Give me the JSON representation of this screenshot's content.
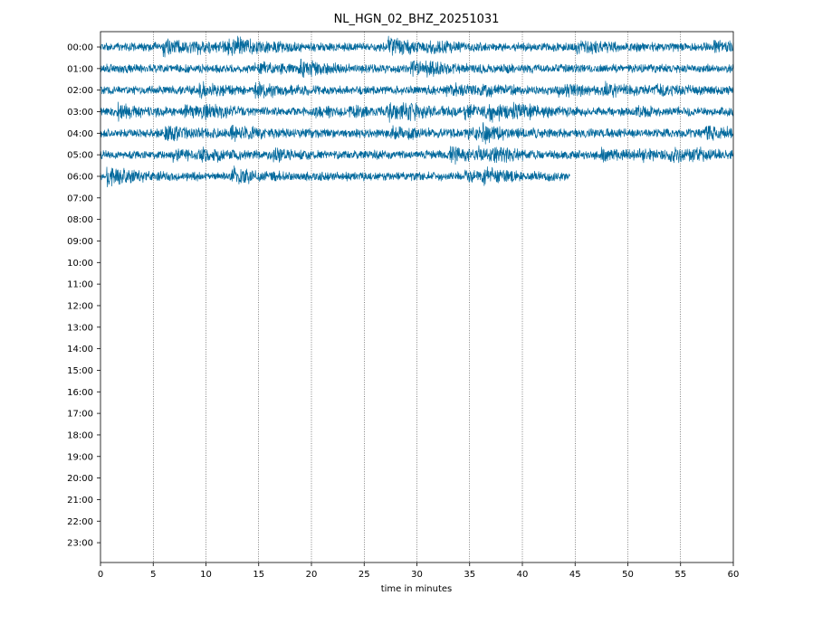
{
  "chart_data": {
    "type": "line",
    "subtype": "seismogram-dayplot",
    "title": "NL_HGN_02_BHZ_20251031",
    "xlabel": "time in minutes",
    "ylabel": "",
    "xlim": [
      0,
      60
    ],
    "xticks": [
      "0",
      "5",
      "10",
      "15",
      "20",
      "25",
      "30",
      "35",
      "40",
      "45",
      "50",
      "55",
      "60"
    ],
    "grid": "vertical dotted lines at each x tick",
    "line_color": "#00689c",
    "rows": [
      {
        "label": "00:00",
        "start_min": 0,
        "end_min": 60
      },
      {
        "label": "01:00",
        "start_min": 0,
        "end_min": 60
      },
      {
        "label": "02:00",
        "start_min": 0,
        "end_min": 60
      },
      {
        "label": "03:00",
        "start_min": 0,
        "end_min": 60
      },
      {
        "label": "04:00",
        "start_min": 0,
        "end_min": 60
      },
      {
        "label": "05:00",
        "start_min": 0,
        "end_min": 60
      },
      {
        "label": "06:00",
        "start_min": 0,
        "end_min": 44.5
      },
      {
        "label": "07:00",
        "start_min": null,
        "end_min": null
      },
      {
        "label": "08:00",
        "start_min": null,
        "end_min": null
      },
      {
        "label": "09:00",
        "start_min": null,
        "end_min": null
      },
      {
        "label": "10:00",
        "start_min": null,
        "end_min": null
      },
      {
        "label": "11:00",
        "start_min": null,
        "end_min": null
      },
      {
        "label": "12:00",
        "start_min": null,
        "end_min": null
      },
      {
        "label": "13:00",
        "start_min": null,
        "end_min": null
      },
      {
        "label": "14:00",
        "start_min": null,
        "end_min": null
      },
      {
        "label": "15:00",
        "start_min": null,
        "end_min": null
      },
      {
        "label": "16:00",
        "start_min": null,
        "end_min": null
      },
      {
        "label": "17:00",
        "start_min": null,
        "end_min": null
      },
      {
        "label": "18:00",
        "start_min": null,
        "end_min": null
      },
      {
        "label": "19:00",
        "start_min": null,
        "end_min": null
      },
      {
        "label": "20:00",
        "start_min": null,
        "end_min": null
      },
      {
        "label": "21:00",
        "start_min": null,
        "end_min": null
      },
      {
        "label": "22:00",
        "start_min": null,
        "end_min": null
      },
      {
        "label": "23:00",
        "start_min": null,
        "end_min": null
      }
    ]
  }
}
